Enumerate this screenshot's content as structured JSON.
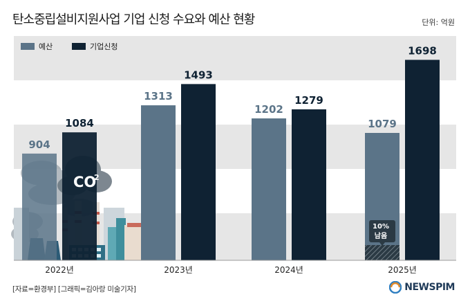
{
  "title": "탄소중립설비지원사업 기업 신청 수요와 예산 현황",
  "unit": "단위: 억원",
  "source": "[자료=환경부] [그래픽=김아랑 미술기자]",
  "logo_text": "NEWSPIM",
  "illustration_text": "CO",
  "illustration_sup": "2",
  "note_text": [
    "10%",
    "남음"
  ],
  "colors": {
    "budget": "#5b7488",
    "apply": "#0f2233",
    "band": "#e6e6e6"
  },
  "chart_data": {
    "type": "bar",
    "categories": [
      "2022년",
      "2023년",
      "2024년",
      "2025년"
    ],
    "series": [
      {
        "name": "예산",
        "values": [
          904,
          1313,
          1202,
          1079
        ]
      },
      {
        "name": "기업신청",
        "values": [
          1084,
          1493,
          1279,
          1698
        ]
      }
    ],
    "legend": "top-left",
    "ylim": [
      0,
      1900
    ],
    "grid": false
  }
}
